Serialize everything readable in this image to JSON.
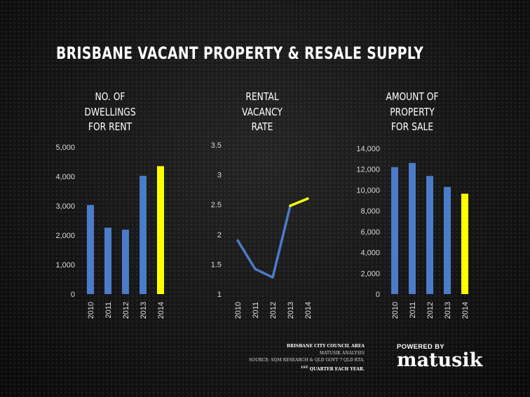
{
  "title": "BRISBANE VACANT PROPERTY & RESALE SUPPLY",
  "chart_data": [
    {
      "type": "bar",
      "title_lines": [
        "NO. OF",
        "DWELLINGS",
        "FOR RENT"
      ],
      "categories": [
        "2010",
        "2011",
        "2012",
        "2013",
        "2014"
      ],
      "values": [
        3030,
        2260,
        2190,
        4020,
        4350
      ],
      "ylim": [
        0,
        5000
      ],
      "yticks": [
        "0",
        "1,000",
        "2,000",
        "3,000",
        "4,000",
        "5,000"
      ],
      "colors": [
        "#4a7cc9",
        "#4a7cc9",
        "#4a7cc9",
        "#4a7cc9",
        "#ffff00"
      ]
    },
    {
      "type": "line",
      "title_lines": [
        "RENTAL",
        "VACANCY",
        "RATE"
      ],
      "categories": [
        "2010",
        "2011",
        "2012",
        "2013",
        "2014"
      ],
      "series": [
        {
          "values": [
            1.9,
            1.42,
            1.28,
            2.48,
            2.6
          ]
        }
      ],
      "ylim": [
        1,
        3.5
      ],
      "yticks": [
        "1",
        "1.5",
        "2",
        "2.5",
        "3",
        "3.5"
      ],
      "colors": {
        "main": "#4a7cc9",
        "highlight": "#ffff00"
      }
    },
    {
      "type": "bar",
      "title_lines": [
        "AMOUNT OF",
        "PROPERTY",
        "FOR SALE"
      ],
      "categories": [
        "2010",
        "2011",
        "2012",
        "2013",
        "2014"
      ],
      "values": [
        12200,
        12600,
        11350,
        10300,
        9650
      ],
      "ylim": [
        0,
        14000
      ],
      "yticks": [
        "0",
        "2,000",
        "4,000",
        "6,000",
        "8,000",
        "10,000",
        "12,000",
        "14,000"
      ],
      "colors": [
        "#4a7cc9",
        "#4a7cc9",
        "#4a7cc9",
        "#4a7cc9",
        "#ffff00"
      ]
    }
  ],
  "footer": {
    "line1": "BRISBANE CITY COUNCIL AREA",
    "line2": "MATUSIK ANALYSIS",
    "line3": "SOURCE: SQM RESEARCH & QLD GOVT 7 QLD RTA.",
    "line4_sup": "1ST",
    "line4": "QUARTER EACH YEAR."
  },
  "logo": {
    "tagline": "POWERED BY",
    "word": "matusik"
  }
}
